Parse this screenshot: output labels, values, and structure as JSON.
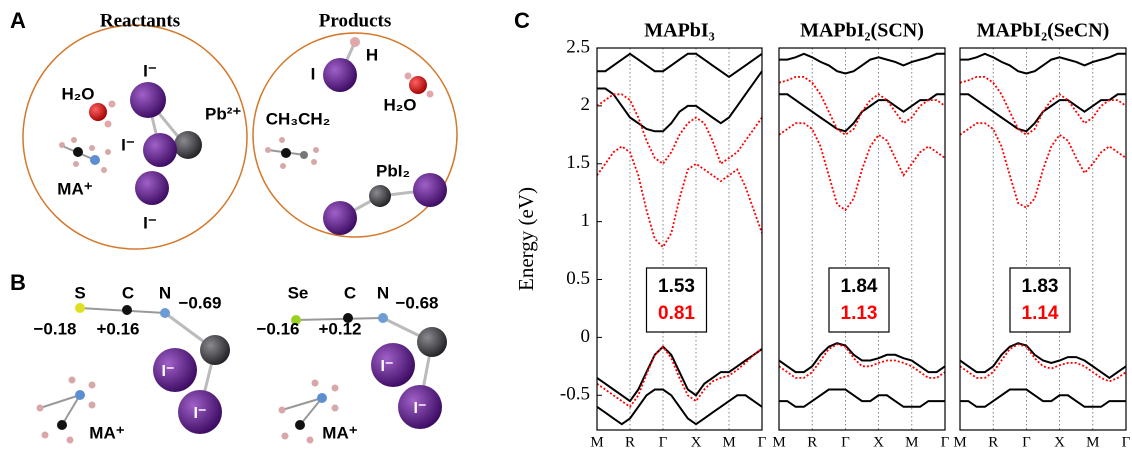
{
  "panel_labels": [
    "A",
    "B",
    "C"
  ],
  "diagram_a": {
    "reactants_title": "Reactants",
    "products_title": "Products",
    "reactants_labels": [
      "H₂O",
      "I⁻",
      "Pb²⁺",
      "I⁻",
      "MA⁺",
      "I⁻"
    ],
    "products_labels": [
      "I",
      "H",
      "H₂O",
      "CH₃CH₂",
      "PbI₂"
    ]
  },
  "diagram_b": {
    "scn": [
      "S",
      "C",
      "N",
      "−0.18",
      "+0.16",
      "−0.69",
      "I⁻",
      "I⁻",
      "MA⁺"
    ],
    "secn": [
      "Se",
      "C",
      "N",
      "−0.16",
      "+0.12",
      "−0.68",
      "I⁻",
      "I⁻",
      "MA⁺"
    ]
  },
  "chart_data": [
    {
      "type": "line",
      "title": "MAPbI₃",
      "ylabel": "Energy (eV)",
      "x": [
        0,
        0.25,
        0.5,
        0.75,
        1,
        1.25,
        1.5,
        1.75,
        2,
        2.25,
        2.5,
        2.75,
        3,
        3.25,
        3.5,
        3.75,
        4,
        4.25,
        4.5,
        4.75,
        5
      ],
      "xlim": [
        0,
        5
      ],
      "xticks": [
        {
          "value": 0,
          "label": "M"
        },
        {
          "value": 1,
          "label": "R"
        },
        {
          "value": 2,
          "label": "Γ"
        },
        {
          "value": 3,
          "label": "X"
        },
        {
          "value": 4,
          "label": "M"
        },
        {
          "value": 5,
          "label": "Γ"
        }
      ],
      "ylim": [
        -0.8,
        2.5
      ],
      "yticks": [
        -0.5,
        0.0,
        0.5,
        1.0,
        1.5,
        2.0,
        2.5
      ],
      "series": [
        {
          "color": "#000000",
          "dash": "solid",
          "values": [
            -0.35,
            -0.4,
            -0.45,
            -0.5,
            -0.55,
            -0.45,
            -0.3,
            -0.15,
            -0.08,
            -0.15,
            -0.3,
            -0.45,
            -0.5,
            -0.4,
            -0.35,
            -0.3,
            -0.3,
            -0.25,
            -0.2,
            -0.15,
            -0.1
          ]
        },
        {
          "color": "#000000",
          "dash": "solid",
          "values": [
            -0.6,
            -0.65,
            -0.7,
            -0.75,
            -0.7,
            -0.6,
            -0.5,
            -0.45,
            -0.45,
            -0.5,
            -0.6,
            -0.7,
            -0.75,
            -0.7,
            -0.65,
            -0.6,
            -0.55,
            -0.5,
            -0.5,
            -0.55,
            -0.6
          ]
        },
        {
          "color": "#000000",
          "dash": "solid",
          "values": [
            2.15,
            2.15,
            2.1,
            2.0,
            1.9,
            1.85,
            1.8,
            1.78,
            1.78,
            1.85,
            1.95,
            2.0,
            2.0,
            1.95,
            1.9,
            1.85,
            1.9,
            2.0,
            2.1,
            2.2,
            2.3
          ]
        },
        {
          "color": "#000000",
          "dash": "solid",
          "values": [
            2.3,
            2.3,
            2.35,
            2.4,
            2.45,
            2.4,
            2.35,
            2.3,
            2.3,
            2.35,
            2.4,
            2.45,
            2.45,
            2.4,
            2.35,
            2.3,
            2.25,
            2.3,
            2.35,
            2.4,
            2.45
          ]
        },
        {
          "color": "#ff0000",
          "dash": "dotted",
          "values": [
            -0.4,
            -0.45,
            -0.5,
            -0.55,
            -0.6,
            -0.5,
            -0.32,
            -0.15,
            -0.08,
            -0.18,
            -0.35,
            -0.5,
            -0.55,
            -0.45,
            -0.38,
            -0.35,
            -0.33,
            -0.28,
            -0.22,
            -0.15,
            -0.1
          ]
        },
        {
          "color": "#ff0000",
          "dash": "dotted",
          "values": [
            1.4,
            1.5,
            1.6,
            1.65,
            1.6,
            1.4,
            1.1,
            0.85,
            0.78,
            0.9,
            1.2,
            1.45,
            1.5,
            1.45,
            1.4,
            1.35,
            1.4,
            1.45,
            1.3,
            1.1,
            0.9
          ]
        },
        {
          "color": "#ff0000",
          "dash": "dotted",
          "values": [
            2.0,
            2.05,
            2.1,
            2.1,
            2.05,
            1.9,
            1.7,
            1.55,
            1.5,
            1.6,
            1.75,
            1.85,
            1.9,
            1.85,
            1.7,
            1.5,
            1.55,
            1.6,
            1.7,
            1.8,
            1.9
          ]
        }
      ],
      "gaps": [
        {
          "value": 1.53,
          "color": "#000000"
        },
        {
          "value": 0.81,
          "color": "#ff0000"
        }
      ]
    },
    {
      "type": "line",
      "title": "MAPbI₂(SCN)",
      "x": [
        0,
        0.25,
        0.5,
        0.75,
        1,
        1.25,
        1.5,
        1.75,
        2,
        2.25,
        2.5,
        2.75,
        3,
        3.25,
        3.5,
        3.75,
        4,
        4.25,
        4.5,
        4.75,
        5
      ],
      "xlim": [
        0,
        5
      ],
      "xticks": [
        {
          "value": 0,
          "label": "M"
        },
        {
          "value": 1,
          "label": "R"
        },
        {
          "value": 2,
          "label": "Γ"
        },
        {
          "value": 3,
          "label": "X"
        },
        {
          "value": 4,
          "label": "M"
        },
        {
          "value": 5,
          "label": "Γ"
        }
      ],
      "ylim": [
        -0.8,
        2.5
      ],
      "series": [
        {
          "color": "#000000",
          "dash": "solid",
          "values": [
            -0.2,
            -0.25,
            -0.3,
            -0.3,
            -0.25,
            -0.15,
            -0.08,
            -0.05,
            -0.07,
            -0.15,
            -0.2,
            -0.2,
            -0.18,
            -0.15,
            -0.15,
            -0.18,
            -0.2,
            -0.25,
            -0.3,
            -0.3,
            -0.25
          ]
        },
        {
          "color": "#000000",
          "dash": "solid",
          "values": [
            -0.55,
            -0.55,
            -0.6,
            -0.6,
            -0.55,
            -0.5,
            -0.45,
            -0.45,
            -0.45,
            -0.5,
            -0.55,
            -0.55,
            -0.5,
            -0.5,
            -0.55,
            -0.6,
            -0.6,
            -0.6,
            -0.55,
            -0.55,
            -0.55
          ]
        },
        {
          "color": "#000000",
          "dash": "solid",
          "values": [
            2.1,
            2.1,
            2.05,
            2.0,
            1.95,
            1.9,
            1.85,
            1.8,
            1.78,
            1.85,
            1.95,
            2.0,
            2.05,
            2.05,
            2.0,
            1.95,
            2.0,
            2.05,
            2.05,
            2.1,
            2.1
          ]
        },
        {
          "color": "#000000",
          "dash": "solid",
          "values": [
            2.4,
            2.4,
            2.42,
            2.45,
            2.42,
            2.38,
            2.35,
            2.3,
            2.28,
            2.3,
            2.35,
            2.4,
            2.42,
            2.4,
            2.38,
            2.35,
            2.38,
            2.4,
            2.42,
            2.45,
            2.45
          ]
        },
        {
          "color": "#ff0000",
          "dash": "dotted",
          "values": [
            -0.25,
            -0.3,
            -0.35,
            -0.35,
            -0.3,
            -0.2,
            -0.1,
            -0.06,
            -0.08,
            -0.18,
            -0.25,
            -0.25,
            -0.22,
            -0.2,
            -0.2,
            -0.22,
            -0.25,
            -0.3,
            -0.35,
            -0.35,
            -0.3
          ]
        },
        {
          "color": "#ff0000",
          "dash": "dotted",
          "values": [
            1.75,
            1.8,
            1.85,
            1.85,
            1.8,
            1.65,
            1.4,
            1.15,
            1.1,
            1.2,
            1.45,
            1.65,
            1.75,
            1.7,
            1.55,
            1.4,
            1.5,
            1.6,
            1.65,
            1.6,
            1.55
          ]
        },
        {
          "color": "#ff0000",
          "dash": "dotted",
          "values": [
            2.2,
            2.22,
            2.25,
            2.25,
            2.2,
            2.1,
            1.95,
            1.8,
            1.75,
            1.8,
            1.95,
            2.05,
            2.1,
            2.05,
            1.95,
            1.85,
            1.9,
            2.0,
            2.05,
            2.05,
            2.0
          ]
        }
      ],
      "gaps": [
        {
          "value": 1.84,
          "color": "#000000"
        },
        {
          "value": 1.13,
          "color": "#ff0000"
        }
      ]
    },
    {
      "type": "line",
      "title": "MAPbI₂(SeCN)",
      "x": [
        0,
        0.25,
        0.5,
        0.75,
        1,
        1.25,
        1.5,
        1.75,
        2,
        2.25,
        2.5,
        2.75,
        3,
        3.25,
        3.5,
        3.75,
        4,
        4.25,
        4.5,
        4.75,
        5
      ],
      "xlim": [
        0,
        5
      ],
      "xticks": [
        {
          "value": 0,
          "label": "M"
        },
        {
          "value": 1,
          "label": "R"
        },
        {
          "value": 2,
          "label": "Γ"
        },
        {
          "value": 3,
          "label": "X"
        },
        {
          "value": 4,
          "label": "M"
        },
        {
          "value": 5,
          "label": "Γ"
        }
      ],
      "ylim": [
        -0.8,
        2.5
      ],
      "series": [
        {
          "color": "#000000",
          "dash": "solid",
          "values": [
            -0.2,
            -0.25,
            -0.3,
            -0.3,
            -0.25,
            -0.15,
            -0.08,
            -0.05,
            -0.07,
            -0.15,
            -0.2,
            -0.22,
            -0.2,
            -0.17,
            -0.17,
            -0.2,
            -0.25,
            -0.3,
            -0.35,
            -0.3,
            -0.25
          ]
        },
        {
          "color": "#000000",
          "dash": "solid",
          "values": [
            -0.55,
            -0.55,
            -0.6,
            -0.6,
            -0.55,
            -0.5,
            -0.45,
            -0.45,
            -0.45,
            -0.5,
            -0.55,
            -0.55,
            -0.5,
            -0.5,
            -0.55,
            -0.6,
            -0.6,
            -0.6,
            -0.55,
            -0.55,
            -0.55
          ]
        },
        {
          "color": "#000000",
          "dash": "solid",
          "values": [
            2.1,
            2.1,
            2.05,
            2.0,
            1.95,
            1.9,
            1.85,
            1.8,
            1.78,
            1.85,
            1.95,
            2.0,
            2.05,
            2.05,
            2.0,
            1.95,
            2.0,
            2.05,
            2.05,
            2.1,
            2.1
          ]
        },
        {
          "color": "#000000",
          "dash": "solid",
          "values": [
            2.4,
            2.4,
            2.42,
            2.45,
            2.42,
            2.38,
            2.35,
            2.3,
            2.28,
            2.3,
            2.35,
            2.4,
            2.42,
            2.4,
            2.38,
            2.35,
            2.38,
            2.4,
            2.42,
            2.45,
            2.45
          ]
        },
        {
          "color": "#ff0000",
          "dash": "dotted",
          "values": [
            -0.25,
            -0.3,
            -0.35,
            -0.35,
            -0.3,
            -0.2,
            -0.1,
            -0.06,
            -0.08,
            -0.18,
            -0.25,
            -0.27,
            -0.24,
            -0.22,
            -0.22,
            -0.25,
            -0.3,
            -0.35,
            -0.38,
            -0.35,
            -0.3
          ]
        },
        {
          "color": "#ff0000",
          "dash": "dotted",
          "values": [
            1.75,
            1.8,
            1.85,
            1.85,
            1.8,
            1.65,
            1.4,
            1.16,
            1.12,
            1.2,
            1.45,
            1.65,
            1.75,
            1.7,
            1.55,
            1.42,
            1.5,
            1.6,
            1.65,
            1.6,
            1.55
          ]
        },
        {
          "color": "#ff0000",
          "dash": "dotted",
          "values": [
            2.2,
            2.22,
            2.25,
            2.25,
            2.2,
            2.1,
            1.95,
            1.8,
            1.75,
            1.8,
            1.95,
            2.05,
            2.1,
            2.05,
            1.95,
            1.85,
            1.9,
            2.0,
            2.05,
            2.05,
            2.0
          ]
        }
      ],
      "gaps": [
        {
          "value": 1.83,
          "color": "#000000"
        },
        {
          "value": 1.14,
          "color": "#ff0000"
        }
      ]
    }
  ]
}
